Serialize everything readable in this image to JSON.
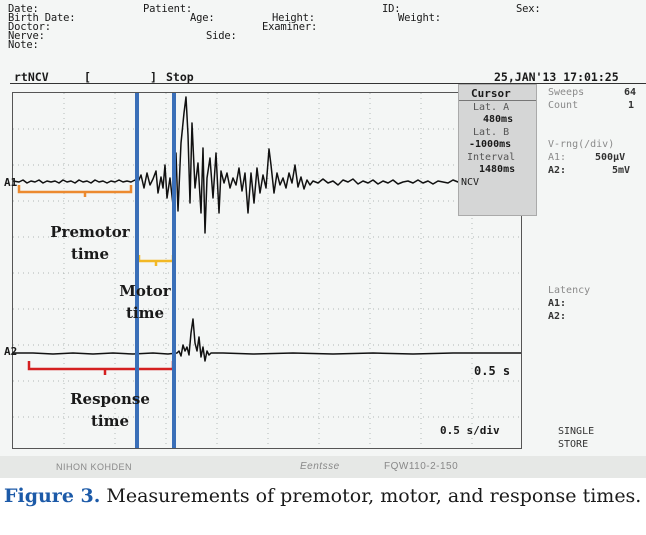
{
  "header": {
    "date": "Date:",
    "birth_date": "Birth Date:",
    "doctor": "Doctor:",
    "nerve": "Nerve:",
    "note": "Note:",
    "patient": "Patient:",
    "age": "Age:",
    "height": "Height:",
    "examiner": "Examiner:",
    "side": "Side:",
    "id": "ID:",
    "weight": "Weight:",
    "sex": "Sex:"
  },
  "status_bar": {
    "mode": "rtNCV",
    "bracket_open": "[",
    "bracket_close": "]",
    "state": "Stop",
    "datetime": "25,JAN'13 17:01:25"
  },
  "cursor_panel": {
    "title": "Cursor",
    "lat_a_label": "Lat. A",
    "lat_a_value": "480ms",
    "lat_b_label": "Lat. B",
    "lat_b_value": "-1000ms",
    "interval_label": "Interval",
    "interval_value": "1480ms",
    "footer": "NCV"
  },
  "side_panel": {
    "sweeps_label": "Sweeps",
    "sweeps_value": "64",
    "count_label": "Count",
    "count_value": "1",
    "vrng_label": "V-rng(/div)",
    "a1_label": "A1:",
    "a1_value": "500µV",
    "a2_label": "A2:",
    "a2_value": "5mV",
    "latency_label": "Latency",
    "a1_latency": "A1:",
    "a2_latency": "A2:",
    "mode_single": "SINGLE",
    "mode_store": "STORE"
  },
  "plot": {
    "channel_a1": "A1",
    "channel_a2": "A2",
    "scale_label": "0.5 s",
    "timebase_label": "0.5 s/div"
  },
  "annotations": {
    "premotor_line1": "Premotor",
    "premotor_line2": "time",
    "motor_line1": "Motor",
    "motor_line2": "time",
    "response_line1": "Response",
    "response_line2": "time"
  },
  "colors": {
    "premotor": "#ec8a2f",
    "motor": "#f2b824",
    "response": "#d42020",
    "cursor_lines": "#3a6fb8",
    "caption_label": "#1c5aa8"
  },
  "footer": {
    "brand": "NIHON KOHDEN",
    "model_logo": "Eentsse",
    "model": "FQW110-2-150"
  },
  "caption": {
    "label": "Figure 3.",
    "text": " Measurements of premotor, motor, and response times."
  }
}
